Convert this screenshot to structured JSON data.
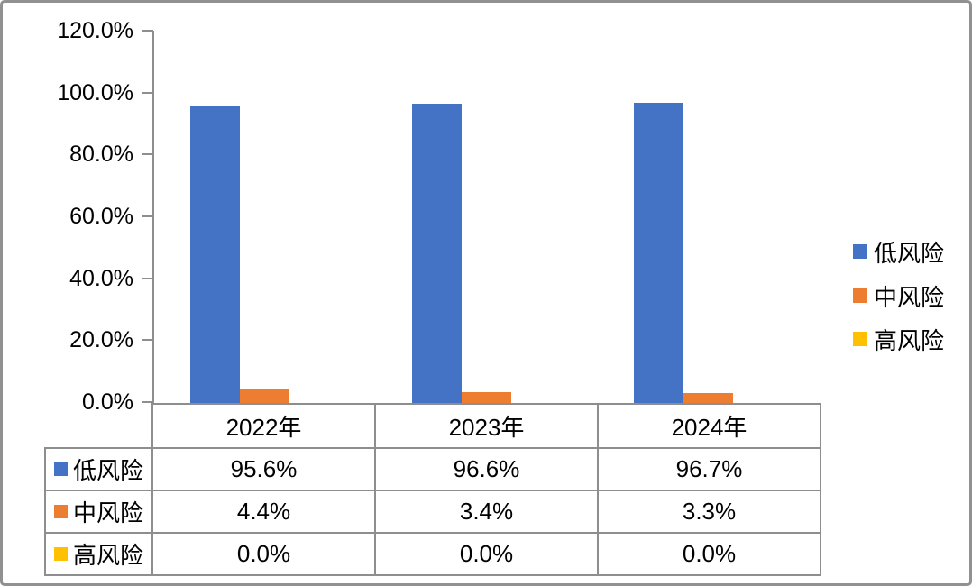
{
  "chart_data": {
    "type": "bar",
    "title": "",
    "categories": [
      "2022年",
      "2023年",
      "2024年"
    ],
    "series": [
      {
        "name": "低风险",
        "color": "#4472C4",
        "values": [
          95.6,
          96.6,
          96.7
        ],
        "labels": [
          "95.6%",
          "96.6%",
          "96.7%"
        ]
      },
      {
        "name": "中风险",
        "color": "#ED7D31",
        "values": [
          4.4,
          3.4,
          3.3
        ],
        "labels": [
          "4.4%",
          "3.4%",
          "3.3%"
        ]
      },
      {
        "name": "高风险",
        "color": "#FFC000",
        "values": [
          0.0,
          0.0,
          0.0
        ],
        "labels": [
          "0.0%",
          "0.0%",
          "0.0%"
        ]
      }
    ],
    "y_axis": {
      "min": 0,
      "max": 120,
      "step": 20,
      "ticks": [
        "120.0%",
        "100.0%",
        "80.0%",
        "60.0%",
        "40.0%",
        "20.0%",
        "0.0%"
      ]
    },
    "legend": {
      "position": "right",
      "entries": [
        "低风险",
        "中风险",
        "高风险"
      ]
    },
    "grid": false,
    "data_table": true,
    "axis_color": "#8E8E8E"
  }
}
